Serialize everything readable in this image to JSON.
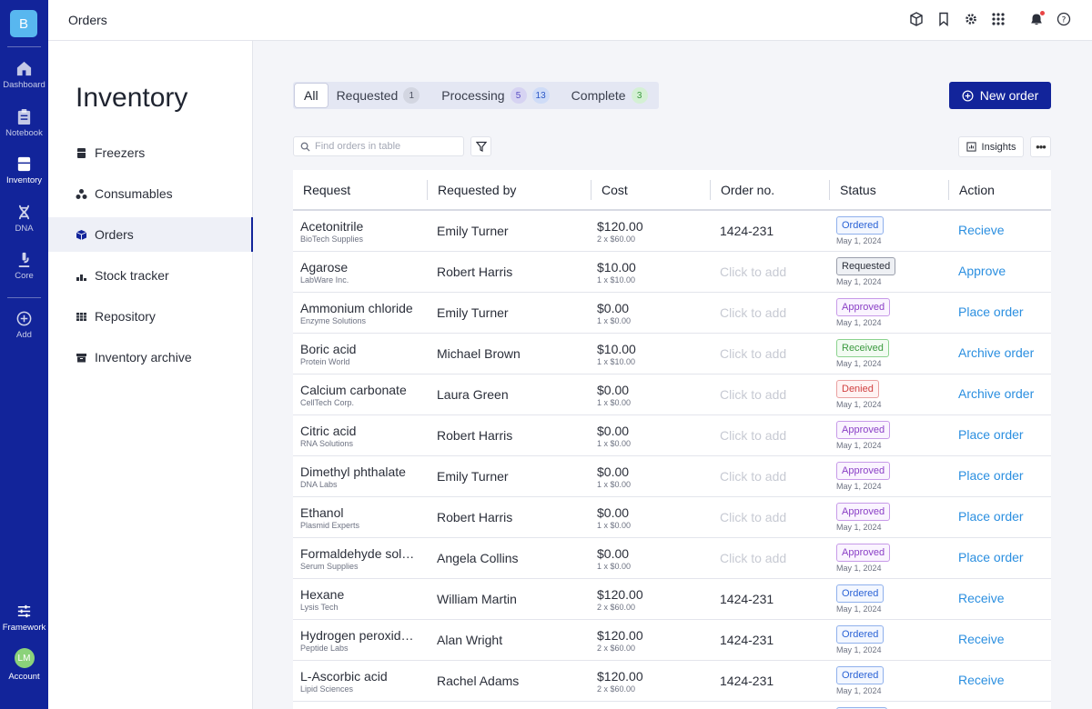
{
  "rail": {
    "logo_letter": "B",
    "items": [
      {
        "label": "Dashboard",
        "icon": "home-icon"
      },
      {
        "label": "Notebook",
        "icon": "clipboard-icon"
      },
      {
        "label": "Inventory",
        "icon": "inventory-icon"
      },
      {
        "label": "DNA",
        "icon": "dna-icon"
      },
      {
        "label": "Core",
        "icon": "microscope-icon"
      },
      {
        "label": "Add",
        "icon": "plus-circle-icon"
      }
    ],
    "framework_label": "Framework",
    "account_initials": "LM",
    "account_label": "Account"
  },
  "topbar": {
    "title": "Orders",
    "icons": [
      "cube-icon",
      "bookmark-icon",
      "gear-icon",
      "apps-grid-icon",
      "bell-icon",
      "help-icon"
    ]
  },
  "sidebar": {
    "heading": "Inventory",
    "items": [
      {
        "label": "Freezers",
        "icon": "freezer-icon"
      },
      {
        "label": "Consumables",
        "icon": "consumables-icon"
      },
      {
        "label": "Orders",
        "icon": "orders-icon"
      },
      {
        "label": "Stock tracker",
        "icon": "stock-tracker-icon"
      },
      {
        "label": "Repository",
        "icon": "repository-icon"
      },
      {
        "label": "Inventory archive",
        "icon": "archive-icon"
      }
    ]
  },
  "tabs": {
    "all": "All",
    "requested": "Requested",
    "requested_count": "1",
    "processing": "Processing",
    "processing_count_a": "5",
    "processing_count_b": "13",
    "complete": "Complete",
    "complete_count": "3"
  },
  "new_order_label": "New order",
  "search": {
    "placeholder": "Find orders in table"
  },
  "insights_label": "Insights",
  "table": {
    "headers": [
      "Request",
      "Requested by",
      "Cost",
      "Order no.",
      "Status",
      "Action"
    ],
    "rows": [
      {
        "name": "Acetonitrile",
        "vendor": "BioTech Supplies",
        "by": "Emily Turner",
        "cost": "$120.00",
        "qty": "2 x $60.00",
        "order_no": "1424-231",
        "status": "Ordered",
        "date": "May 1, 2024",
        "action": "Recieve"
      },
      {
        "name": "Agarose",
        "vendor": "LabWare Inc.",
        "by": "Robert Harris",
        "cost": "$10.00",
        "qty": "1 x $10.00",
        "order_no": "Click to add",
        "status": "Requested",
        "date": "May 1, 2024",
        "action": "Approve"
      },
      {
        "name": "Ammonium chloride",
        "vendor": "Enzyme Solutions",
        "by": "Emily Turner",
        "cost": "$0.00",
        "qty": "1 x $0.00",
        "order_no": "Click to add",
        "status": "Approved",
        "date": "May 1, 2024",
        "action": "Place order"
      },
      {
        "name": "Boric acid",
        "vendor": "Protein World",
        "by": "Michael Brown",
        "cost": "$10.00",
        "qty": "1 x $10.00",
        "order_no": "Click to add",
        "status": "Received",
        "date": "May 1, 2024",
        "action": "Archive order"
      },
      {
        "name": "Calcium carbonate",
        "vendor": "CellTech Corp.",
        "by": "Laura Green",
        "cost": "$0.00",
        "qty": "1 x $0.00",
        "order_no": "Click to add",
        "status": "Denied",
        "date": "May 1, 2024",
        "action": "Archive order"
      },
      {
        "name": "Citric acid",
        "vendor": "RNA Solutions",
        "by": "Robert Harris",
        "cost": "$0.00",
        "qty": "1 x $0.00",
        "order_no": "Click to add",
        "status": "Approved",
        "date": "May 1, 2024",
        "action": "Place order"
      },
      {
        "name": "Dimethyl phthalate",
        "vendor": "DNA Labs",
        "by": "Emily Turner",
        "cost": "$0.00",
        "qty": "1 x $0.00",
        "order_no": "Click to add",
        "status": "Approved",
        "date": "May 1, 2024",
        "action": "Place order"
      },
      {
        "name": "Ethanol",
        "vendor": "Plasmid Experts",
        "by": "Robert Harris",
        "cost": "$0.00",
        "qty": "1 x $0.00",
        "order_no": "Click to add",
        "status": "Approved",
        "date": "May 1, 2024",
        "action": "Place order"
      },
      {
        "name": "Formaldehyde solution",
        "vendor": "Serum Supplies",
        "by": "Angela Collins",
        "cost": "$0.00",
        "qty": "1 x $0.00",
        "order_no": "Click to add",
        "status": "Approved",
        "date": "May 1, 2024",
        "action": "Place order"
      },
      {
        "name": "Hexane",
        "vendor": "Lysis Tech",
        "by": "William Martin",
        "cost": "$120.00",
        "qty": "2 x $60.00",
        "order_no": "1424-231",
        "status": "Ordered",
        "date": "May 1, 2024",
        "action": "Receive"
      },
      {
        "name": "Hydrogen peroxide solution",
        "vendor": "Peptide Labs",
        "by": "Alan Wright",
        "cost": "$120.00",
        "qty": "2 x $60.00",
        "order_no": "1424-231",
        "status": "Ordered",
        "date": "May 1, 2024",
        "action": "Receive"
      },
      {
        "name": "L-Ascorbic acid",
        "vendor": "Lipid Sciences",
        "by": "Rachel Adams",
        "cost": "$120.00",
        "qty": "2 x $60.00",
        "order_no": "1424-231",
        "status": "Ordered",
        "date": "May 1, 2024",
        "action": "Receive"
      }
    ]
  },
  "colors": {
    "rail_bg": "#12249a",
    "accent": "#12249a",
    "link": "#2b8fe0"
  }
}
